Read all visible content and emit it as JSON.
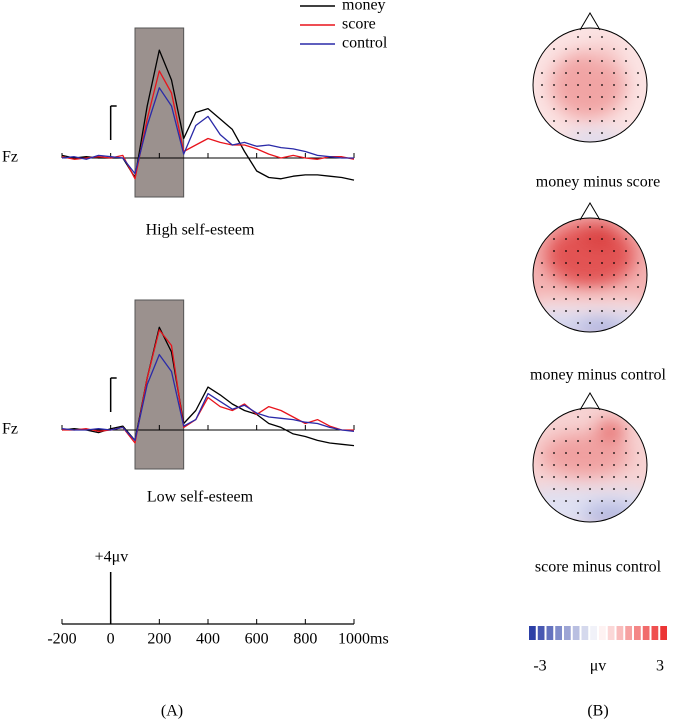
{
  "chart_data": [
    {
      "type": "line",
      "title": "High self-esteem",
      "ylabel": "Fz",
      "x": [
        -200,
        -150,
        -100,
        -50,
        0,
        50,
        100,
        150,
        200,
        250,
        300,
        350,
        400,
        450,
        500,
        550,
        600,
        650,
        700,
        750,
        800,
        850,
        900,
        950,
        1000
      ],
      "xlim": [
        -200,
        1000
      ],
      "ylim": [
        -3,
        10
      ],
      "window": [
        100,
        300
      ],
      "series": [
        {
          "name": "money",
          "color": "#000000",
          "values": [
            0.2,
            0,
            0.1,
            0,
            0,
            0,
            -1.5,
            4,
            8.3,
            6,
            1.5,
            3.5,
            3.8,
            3,
            2.2,
            0.5,
            -1,
            -1.5,
            -1.6,
            -1.4,
            -1.3,
            -1.3,
            -1.4,
            -1.5,
            -1.7
          ]
        },
        {
          "name": "score",
          "color": "#e8141c",
          "values": [
            0.1,
            -0.1,
            0,
            0.1,
            0,
            0.2,
            -1.6,
            3,
            6.7,
            5,
            0.5,
            1,
            1.5,
            1.2,
            1,
            1,
            0.7,
            0.3,
            0,
            0.2,
            0,
            -0.1,
            0.1,
            0.1,
            -0.1
          ]
        },
        {
          "name": "control",
          "color": "#2a2aa8",
          "values": [
            0,
            0.1,
            -0.1,
            0.2,
            0.1,
            0,
            -1.2,
            2.5,
            5.4,
            4,
            0.3,
            2.5,
            3.2,
            1.8,
            1,
            1.2,
            0.9,
            1,
            0.8,
            0.7,
            0.5,
            0.2,
            0.1,
            0,
            0
          ]
        }
      ]
    },
    {
      "type": "line",
      "title": "Low self-esteem",
      "ylabel": "Fz",
      "x": [
        -200,
        -150,
        -100,
        -50,
        0,
        50,
        100,
        150,
        200,
        250,
        300,
        350,
        400,
        450,
        500,
        550,
        600,
        650,
        700,
        750,
        800,
        850,
        900,
        950,
        1000
      ],
      "xlim": [
        -200,
        1000
      ],
      "ylim": [
        -3,
        10
      ],
      "window": [
        100,
        300
      ],
      "series": [
        {
          "color": "#000000",
          "values": [
            0,
            0.1,
            0,
            -0.2,
            0.1,
            0.3,
            -0.8,
            4,
            7.9,
            6,
            0.5,
            1.5,
            3.3,
            2.7,
            2,
            1.5,
            1.2,
            0.5,
            0.2,
            -0.3,
            -0.5,
            -0.8,
            -1,
            -1.1,
            -1.2
          ]
        },
        {
          "color": "#e8141c",
          "values": [
            0,
            0,
            0.1,
            -0.1,
            0,
            0.2,
            -1,
            4,
            7.7,
            6.5,
            0.2,
            0.8,
            2.5,
            1.8,
            1.5,
            2,
            1.2,
            1.8,
            1.5,
            1,
            0.5,
            0.8,
            0.3,
            0,
            0
          ]
        },
        {
          "color": "#2a2aa8",
          "values": [
            0.1,
            0,
            0,
            0.1,
            0,
            0.2,
            -0.8,
            3.5,
            5.8,
            4.5,
            0.3,
            0.8,
            2.8,
            2.2,
            1.6,
            1.9,
            1.3,
            1,
            0.9,
            0.8,
            0.6,
            0.5,
            0.2,
            0,
            -0.1
          ]
        }
      ]
    }
  ],
  "axis": {
    "xlim": [
      -200,
      1000
    ],
    "xticks": [
      -200,
      0,
      200,
      400,
      600,
      800,
      1000
    ],
    "unit": "ms",
    "scale_bar": {
      "value": 4,
      "label": "+4μv"
    }
  },
  "topomaps": {
    "labels": [
      "money minus score",
      "money minus control",
      "score minus control"
    ],
    "colorbar": {
      "range": [
        -3,
        3
      ],
      "ticks": [
        -3,
        3
      ],
      "label": "μv"
    }
  },
  "panel_labels": [
    "(A)",
    "(B)"
  ]
}
